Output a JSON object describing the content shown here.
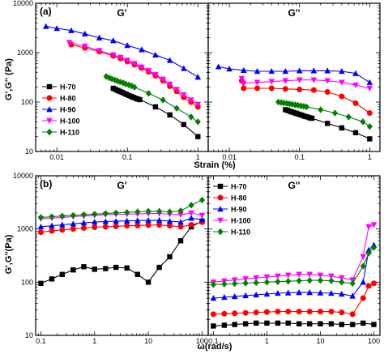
{
  "styles": {
    "H-70": {
      "color": "#000000",
      "marker": "square"
    },
    "H-80": {
      "color": "#ff0000",
      "marker": "circle"
    },
    "H-90": {
      "color": "#0000ff",
      "marker": "triangle-up"
    },
    "H-100": {
      "color": "#ff00ff",
      "marker": "triangle-down"
    },
    "H-110": {
      "color": "#008000",
      "marker": "diamond"
    }
  },
  "chart_data": [
    {
      "type": "line",
      "panel_label": "(a)",
      "title": "G'",
      "xlabel": "Strain (%)",
      "ylabel": "G',G'' (Pa)",
      "xscale": "log",
      "yscale": "log",
      "xlim": [
        0.005,
        1.4
      ],
      "ylim": [
        10,
        10000
      ],
      "xticks": [
        0.01,
        0.1,
        1
      ],
      "xtick_labels": [
        "0.01",
        "0.1",
        "1"
      ],
      "yticks": [
        10,
        100,
        1000,
        10000
      ],
      "ytick_labels": [
        "10",
        "100",
        "1000",
        "10000"
      ],
      "legend": {
        "entries": [
          "H-70",
          "H-80",
          "H-90",
          "H-100",
          "H-110"
        ],
        "placement": "lower-left"
      },
      "series": [
        {
          "name": "H-70",
          "x": [
            0.063,
            0.068,
            0.073,
            0.078,
            0.084,
            0.09,
            0.097,
            0.105,
            0.113,
            0.121,
            0.13,
            0.14,
            0.15,
            0.25,
            0.4,
            0.63,
            1.0
          ],
          "y": [
            190,
            180,
            172,
            165,
            158,
            150,
            143,
            136,
            130,
            125,
            120,
            115,
            112,
            80,
            55,
            35,
            20
          ]
        },
        {
          "name": "H-80",
          "x": [
            0.016,
            0.025,
            0.04,
            0.063,
            0.08,
            0.1,
            0.126,
            0.158,
            0.2,
            0.25,
            0.32,
            0.4,
            0.5,
            0.63,
            0.8,
            1.0
          ],
          "y": [
            1450,
            1250,
            1050,
            860,
            760,
            660,
            570,
            490,
            410,
            340,
            270,
            210,
            165,
            125,
            100,
            80
          ]
        },
        {
          "name": "H-90",
          "x": [
            0.007,
            0.01,
            0.016,
            0.025,
            0.04,
            0.063,
            0.1,
            0.16,
            0.25,
            0.4,
            0.63,
            1.0
          ],
          "y": [
            3400,
            3100,
            2800,
            2400,
            2000,
            1750,
            1400,
            1150,
            900,
            700,
            480,
            320
          ]
        },
        {
          "name": "H-100",
          "x": [
            0.015,
            0.025,
            0.04,
            0.063,
            0.08,
            0.1,
            0.126,
            0.158,
            0.2,
            0.25,
            0.32,
            0.4,
            0.5,
            0.63,
            0.8,
            1.0
          ],
          "y": [
            1600,
            1350,
            1100,
            900,
            800,
            700,
            600,
            510,
            430,
            360,
            290,
            230,
            180,
            140,
            110,
            90
          ]
        },
        {
          "name": "H-110",
          "x": [
            0.05,
            0.055,
            0.06,
            0.066,
            0.072,
            0.079,
            0.087,
            0.095,
            0.105,
            0.115,
            0.126,
            0.2,
            0.32,
            0.5,
            0.8,
            1.0
          ],
          "y": [
            330,
            310,
            295,
            280,
            268,
            255,
            245,
            232,
            222,
            212,
            200,
            150,
            110,
            75,
            50,
            40
          ]
        }
      ]
    },
    {
      "type": "line",
      "title": "G''",
      "xscale": "log",
      "yscale": "log",
      "xlim": [
        0.005,
        1.4
      ],
      "ylim": [
        10,
        10000
      ],
      "xticks": [
        0.01,
        0.1,
        1
      ],
      "xtick_labels": [
        "0.01",
        "0.1",
        "1"
      ],
      "series": [
        {
          "name": "H-70",
          "x": [
            0.063,
            0.068,
            0.073,
            0.078,
            0.084,
            0.09,
            0.097,
            0.105,
            0.113,
            0.121,
            0.13,
            0.14,
            0.15,
            0.25,
            0.4,
            0.63,
            1.0
          ],
          "y": [
            70,
            68,
            65,
            63,
            61,
            59,
            57,
            55,
            53,
            51,
            50,
            48,
            47,
            37,
            30,
            24,
            18
          ]
        },
        {
          "name": "H-80",
          "x": [
            0.015,
            0.016,
            0.025,
            0.04,
            0.063,
            0.1,
            0.16,
            0.25,
            0.4,
            0.63,
            1.0
          ],
          "y": [
            270,
            190,
            190,
            190,
            185,
            180,
            175,
            160,
            130,
            95,
            60
          ]
        },
        {
          "name": "H-90",
          "x": [
            0.007,
            0.01,
            0.016,
            0.025,
            0.04,
            0.063,
            0.1,
            0.16,
            0.25,
            0.4,
            0.63,
            1.0
          ],
          "y": [
            520,
            470,
            440,
            420,
            420,
            420,
            430,
            430,
            430,
            420,
            380,
            250
          ]
        },
        {
          "name": "H-100",
          "x": [
            0.015,
            0.016,
            0.025,
            0.04,
            0.063,
            0.1,
            0.16,
            0.25,
            0.4,
            0.63,
            1.0
          ],
          "y": [
            300,
            240,
            250,
            260,
            270,
            280,
            280,
            270,
            250,
            220,
            190
          ]
        },
        {
          "name": "H-110",
          "x": [
            0.05,
            0.055,
            0.06,
            0.066,
            0.072,
            0.079,
            0.087,
            0.095,
            0.105,
            0.115,
            0.126,
            0.2,
            0.32,
            0.5,
            0.8,
            1.0
          ],
          "y": [
            100,
            98,
            96,
            94,
            92,
            90,
            88,
            86,
            84,
            82,
            80,
            70,
            60,
            50,
            40,
            32
          ]
        }
      ]
    },
    {
      "type": "line",
      "panel_label": "(b)",
      "title": "G'",
      "xlabel": "ω(rad/s)",
      "ylabel": "G',G''(Pa)",
      "xscale": "log",
      "yscale": "log",
      "xlim": [
        0.08,
        130
      ],
      "ylim": [
        10,
        10000
      ],
      "xticks": [
        0.1,
        1,
        10,
        100
      ],
      "xtick_labels": [
        "0.1",
        "1",
        "10",
        "100"
      ],
      "yticks": [
        10,
        100,
        1000,
        10000
      ],
      "ytick_labels": [
        "10",
        "100",
        "1000",
        "10000"
      ],
      "series": [
        {
          "name": "H-70",
          "x": [
            0.1,
            0.16,
            0.25,
            0.4,
            0.63,
            1.0,
            1.6,
            2.5,
            4.0,
            6.3,
            10,
            16,
            25,
            40,
            63,
            100
          ],
          "y": [
            95,
            115,
            140,
            170,
            195,
            175,
            180,
            190,
            185,
            140,
            100,
            190,
            300,
            600,
            1100,
            1400
          ]
        },
        {
          "name": "H-80",
          "x": [
            0.1,
            0.16,
            0.25,
            0.4,
            0.63,
            1.0,
            1.6,
            2.5,
            4.0,
            6.3,
            10,
            16,
            25,
            40,
            63,
            100
          ],
          "y": [
            870,
            920,
            960,
            1000,
            1040,
            1080,
            1100,
            1120,
            1150,
            1160,
            1180,
            1190,
            1150,
            1100,
            1200,
            1350
          ]
        },
        {
          "name": "H-90",
          "x": [
            0.1,
            0.16,
            0.25,
            0.4,
            0.63,
            1.0,
            1.6,
            2.5,
            4.0,
            6.3,
            10,
            16,
            25,
            40,
            63,
            100
          ],
          "y": [
            1100,
            1150,
            1200,
            1250,
            1300,
            1350,
            1380,
            1400,
            1420,
            1440,
            1450,
            1460,
            1400,
            1350,
            1600,
            1500
          ]
        },
        {
          "name": "H-100",
          "x": [
            0.1,
            0.16,
            0.25,
            0.4,
            0.63,
            1.0,
            1.6,
            2.5,
            4.0,
            6.3,
            10,
            16,
            25,
            40,
            63,
            100
          ],
          "y": [
            1550,
            1600,
            1650,
            1700,
            1750,
            1800,
            1850,
            1880,
            1900,
            1920,
            1950,
            1960,
            1900,
            1850,
            2000,
            1800
          ]
        },
        {
          "name": "H-110",
          "x": [
            0.1,
            0.16,
            0.25,
            0.4,
            0.63,
            1.0,
            1.6,
            2.5,
            4.0,
            6.3,
            10,
            16,
            25,
            40,
            63,
            100
          ],
          "y": [
            1650,
            1700,
            1750,
            1800,
            1850,
            1900,
            1950,
            2000,
            2050,
            2100,
            2150,
            2150,
            2100,
            2200,
            2800,
            3500
          ]
        }
      ]
    },
    {
      "type": "line",
      "title": "G''",
      "xscale": "log",
      "yscale": "log",
      "xlim": [
        0.08,
        130
      ],
      "ylim": [
        10,
        10000
      ],
      "xticks": [
        0.1,
        1,
        10,
        100
      ],
      "xtick_labels": [
        "0.1",
        "1",
        "10",
        "100"
      ],
      "legend": {
        "entries": [
          "H-70",
          "H-80",
          "H-90",
          "H-100",
          "H-110"
        ],
        "placement": "top-left"
      },
      "series": [
        {
          "name": "H-70",
          "x": [
            0.1,
            0.16,
            0.25,
            0.4,
            0.63,
            1.0,
            1.6,
            2.5,
            4.0,
            6.3,
            10,
            16,
            25,
            40,
            63,
            100
          ],
          "y": [
            15,
            15.5,
            16,
            16.5,
            17,
            17,
            17,
            17,
            16.5,
            16.5,
            16.5,
            16.5,
            16,
            16,
            17,
            16
          ]
        },
        {
          "name": "H-80",
          "x": [
            0.1,
            0.16,
            0.25,
            0.4,
            0.63,
            1.0,
            1.6,
            2.5,
            4.0,
            6.3,
            10,
            16,
            25,
            40,
            63,
            80,
            100
          ],
          "y": [
            25,
            25.5,
            26,
            26.5,
            27,
            27.5,
            28,
            28,
            28,
            28,
            28,
            28,
            27,
            25,
            50,
            85,
            95
          ]
        },
        {
          "name": "H-90",
          "x": [
            0.1,
            0.16,
            0.25,
            0.4,
            0.63,
            1.0,
            1.6,
            2.5,
            4.0,
            6.3,
            10,
            16,
            25,
            40,
            63,
            80,
            100
          ],
          "y": [
            50,
            52,
            54,
            56,
            58,
            60,
            62,
            63,
            64,
            64,
            63,
            62,
            60,
            55,
            100,
            400,
            500
          ]
        },
        {
          "name": "H-100",
          "x": [
            0.1,
            0.16,
            0.25,
            0.4,
            0.63,
            1.0,
            1.6,
            2.5,
            4.0,
            6.3,
            10,
            16,
            25,
            40,
            63,
            80,
            100
          ],
          "y": [
            100,
            105,
            110,
            115,
            120,
            125,
            130,
            135,
            140,
            140,
            135,
            130,
            120,
            110,
            300,
            1100,
            1200
          ]
        },
        {
          "name": "H-110",
          "x": [
            0.1,
            0.16,
            0.25,
            0.4,
            0.63,
            1.0,
            1.6,
            2.5,
            4.0,
            6.3,
            10,
            16,
            25,
            40,
            63,
            80,
            100
          ],
          "y": [
            90,
            92,
            94,
            96,
            98,
            100,
            102,
            104,
            106,
            108,
            108,
            106,
            100,
            95,
            200,
            350,
            450
          ]
        }
      ]
    }
  ]
}
